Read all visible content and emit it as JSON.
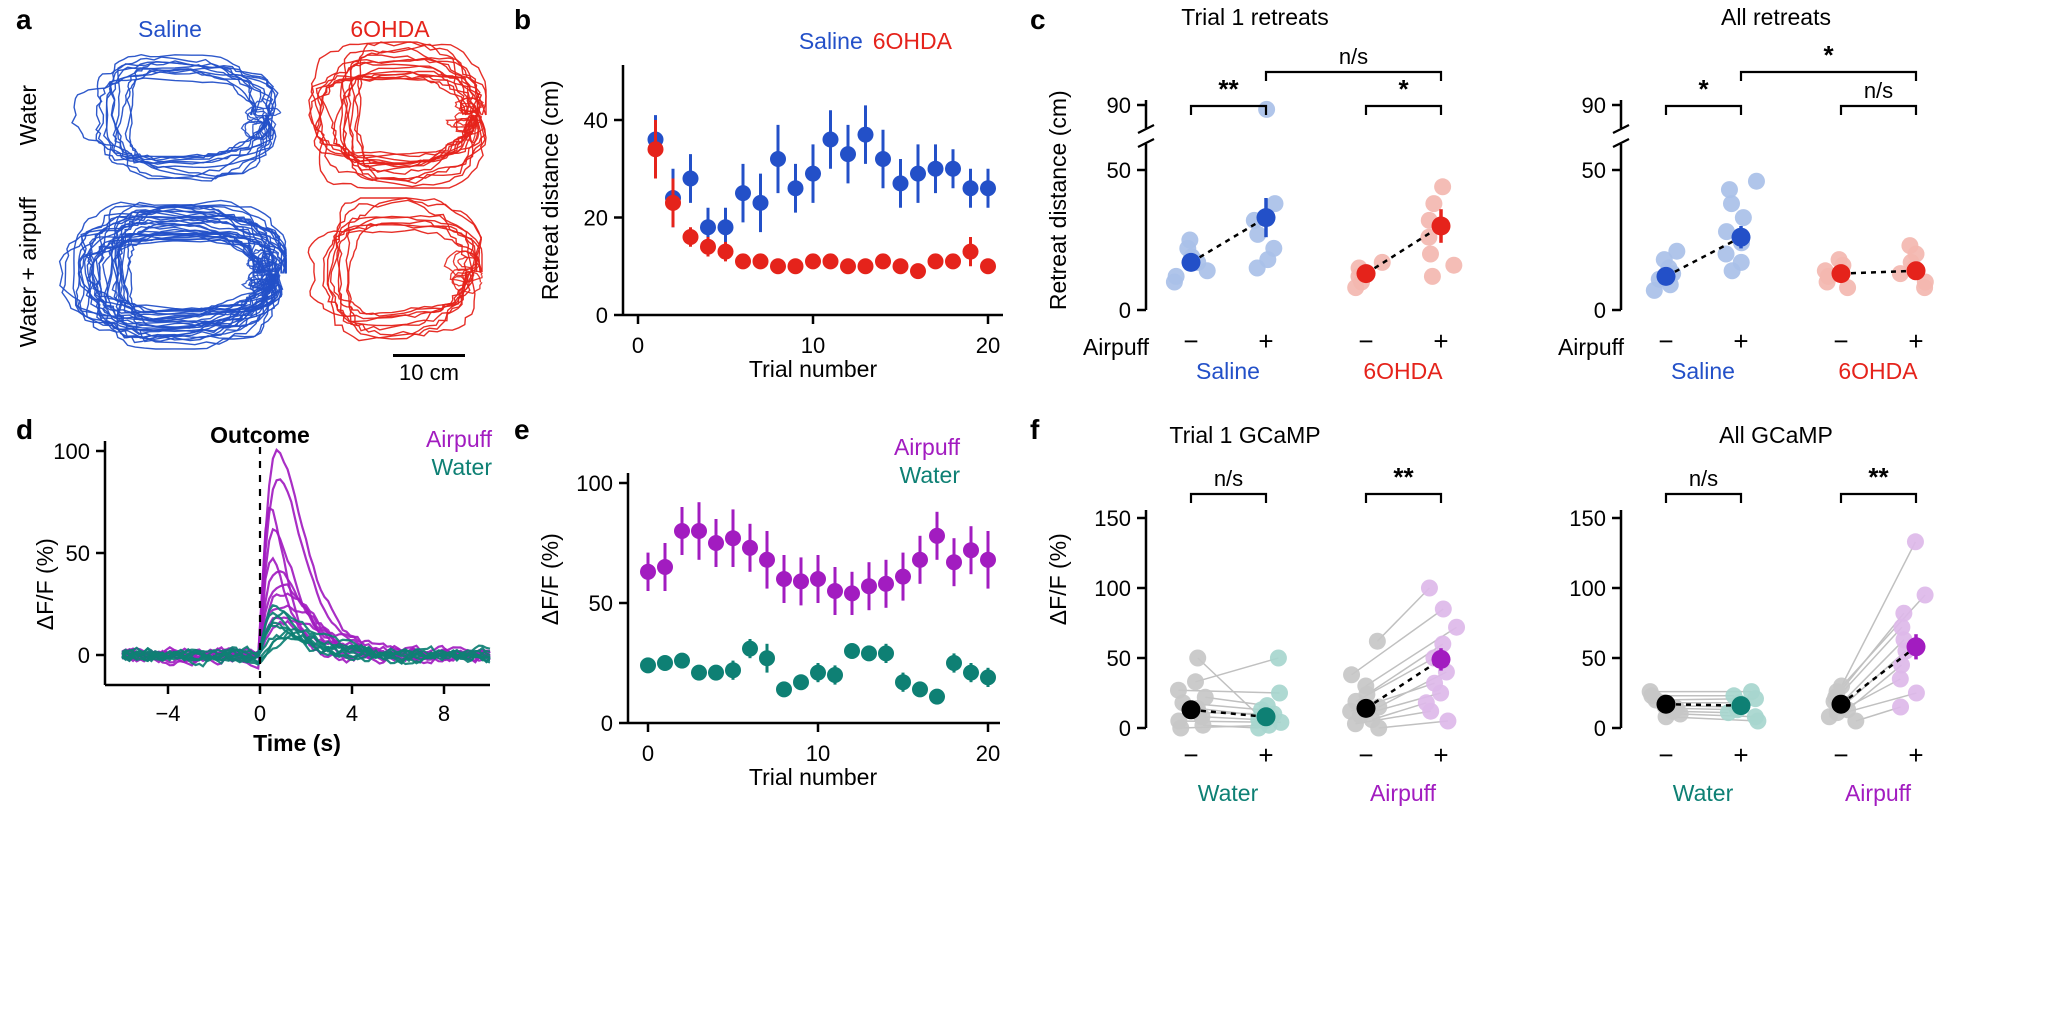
{
  "palette": {
    "blue": "#2350c8",
    "red": "#e5231b",
    "purple": "#a21cc0",
    "teal": "#0e8074",
    "light_blue": "#a9c0e8",
    "light_red": "#f3b7b0",
    "light_purple": "#ddb8e9",
    "light_teal": "#a7d6ce",
    "light_gray": "#c7c7c7",
    "gray_line": "#c0c0c0",
    "black": "#000000"
  },
  "chart_data": [
    {
      "panel": "a",
      "type": "trajectories",
      "col_labels": [
        "Saline",
        "6OHDA"
      ],
      "row_labels": [
        "Water",
        "Water + airpuff"
      ],
      "scalebar_label": "10 cm",
      "plots": [
        {
          "row": 0,
          "col": 0,
          "color": "blue",
          "loops": 11,
          "seed": 101
        },
        {
          "row": 0,
          "col": 1,
          "color": "red",
          "loops": 15,
          "seed": 202
        },
        {
          "row": 1,
          "col": 0,
          "color": "blue",
          "loops": 30,
          "seed": 303
        },
        {
          "row": 1,
          "col": 1,
          "color": "red",
          "loops": 9,
          "seed": 404
        }
      ]
    },
    {
      "panel": "b",
      "type": "errorbar-scatter",
      "xlabel": "Trial number",
      "ylabel": "Retreat distance (cm)",
      "xlim": [
        0,
        21
      ],
      "ylim": [
        0,
        50
      ],
      "xticks": [
        0,
        10,
        20
      ],
      "yticks": [
        0,
        20,
        40
      ],
      "legend": [
        {
          "label": "Saline",
          "color": "blue"
        },
        {
          "label": "6OHDA",
          "color": "red"
        }
      ],
      "x": [
        1,
        2,
        3,
        4,
        5,
        6,
        7,
        8,
        9,
        10,
        11,
        12,
        13,
        14,
        15,
        16,
        17,
        18,
        19,
        20
      ],
      "series": [
        {
          "name": "Saline",
          "color": "blue",
          "values": [
            36,
            24,
            28,
            18,
            18,
            25,
            23,
            32,
            26,
            29,
            36,
            33,
            37,
            32,
            27,
            29,
            30,
            30,
            26,
            26
          ],
          "errors": [
            5,
            6,
            5,
            4,
            4,
            6,
            6,
            7,
            5,
            6,
            6,
            6,
            6,
            6,
            5,
            6,
            5,
            4,
            4,
            4
          ]
        },
        {
          "name": "6OHDA",
          "color": "red",
          "values": [
            34,
            23,
            16,
            14,
            13,
            11,
            11,
            10,
            10,
            11,
            11,
            10,
            10,
            11,
            10,
            9,
            11,
            11,
            13,
            10
          ],
          "errors": [
            6,
            5,
            2,
            2,
            2,
            1.5,
            1.5,
            1.5,
            1.5,
            1.5,
            1.5,
            1.5,
            1.5,
            1.5,
            1.5,
            1.5,
            1.5,
            1.5,
            3,
            1.5
          ]
        }
      ]
    },
    {
      "panel": "c",
      "type": "paired-dots",
      "ylabel": "Retreat distance (cm)",
      "subplots": [
        {
          "title": "Trial 1 retreats",
          "yticks": [
            0,
            50,
            90
          ],
          "break_between": [
            50,
            90
          ],
          "axis_row_label": "Airpuff",
          "tick_signs": [
            "−",
            "+",
            "−",
            "+"
          ],
          "groups": [
            {
              "name": "Saline",
              "color": "blue",
              "sig": "**",
              "minus": {
                "points": [
                  10,
                  12,
                  14,
                  17,
                  19,
                  22,
                  25
                ],
                "mean": 17,
                "err": 3
              },
              "plus": {
                "points": [
                  15,
                  18,
                  22,
                  27,
                  32,
                  38,
                  85
                ],
                "mean": 33,
                "err": 7
              }
            },
            {
              "name": "6OHDA",
              "color": "red",
              "sig": "*",
              "minus": {
                "points": [
                  8,
                  10,
                  12,
                  13,
                  15,
                  17
                ],
                "mean": 13,
                "err": 2
              },
              "plus": {
                "points": [
                  12,
                  16,
                  20,
                  26,
                  32,
                  38,
                  44
                ],
                "mean": 30,
                "err": 6
              }
            }
          ],
          "top_bracket": {
            "label": "n/s"
          },
          "group_labels": [
            {
              "label": "Saline",
              "color": "blue"
            },
            {
              "label": "6OHDA",
              "color": "red"
            }
          ]
        },
        {
          "title": "All retreats",
          "yticks": [
            0,
            50,
            90
          ],
          "break_between": [
            50,
            90
          ],
          "axis_row_label": "Airpuff",
          "tick_signs": [
            "−",
            "+",
            "−",
            "+"
          ],
          "groups": [
            {
              "name": "Saline",
              "color": "blue",
              "sig": "*",
              "minus": {
                "points": [
                  7,
                  9,
                  11,
                  13,
                  15,
                  18,
                  21
                ],
                "mean": 12,
                "err": 2
              },
              "plus": {
                "points": [
                  14,
                  17,
                  20,
                  24,
                  28,
                  33,
                  38,
                  43,
                  46
                ],
                "mean": 26,
                "err": 4
              }
            },
            {
              "name": "6OHDA",
              "color": "red",
              "sig": "n/s",
              "minus": {
                "points": [
                  8,
                  10,
                  12,
                  14,
                  16,
                  18
                ],
                "mean": 13,
                "err": 1.5
              },
              "plus": {
                "points": [
                  8,
                  10,
                  13,
                  15,
                  17,
                  20,
                  23
                ],
                "mean": 14,
                "err": 2
              }
            }
          ],
          "top_bracket": {
            "label": "*"
          },
          "group_labels": [
            {
              "label": "Saline",
              "color": "blue"
            },
            {
              "label": "6OHDA",
              "color": "red"
            }
          ]
        }
      ]
    },
    {
      "panel": "d",
      "type": "traces",
      "xlabel": "Time (s)",
      "ylabel": "ΔF/F (%)",
      "xlim": [
        -6,
        10
      ],
      "ylim": [
        -15,
        105
      ],
      "xticks": [
        -4,
        0,
        4,
        8
      ],
      "yticks": [
        0,
        50,
        100
      ],
      "event_label": "Outcome",
      "event_x": 0,
      "legend": [
        {
          "label": "Airpuff",
          "color": "purple"
        },
        {
          "label": "Water",
          "color": "teal"
        }
      ],
      "series": [
        {
          "name": "Airpuff",
          "color": "purple",
          "seed": 11,
          "peaks": [
            100,
            86,
            72,
            60,
            50,
            42,
            35,
            30,
            25,
            21,
            17
          ]
        },
        {
          "name": "Water",
          "color": "teal",
          "seed": 12,
          "peaks": [
            26,
            22,
            19,
            16,
            14,
            12,
            11,
            9,
            8
          ]
        }
      ]
    },
    {
      "panel": "e",
      "type": "errorbar-scatter",
      "xlabel": "Trial number",
      "ylabel": "ΔF/F (%)",
      "xlim": [
        -0.5,
        20.5
      ],
      "ylim": [
        0,
        105
      ],
      "xticks": [
        0,
        10,
        20
      ],
      "yticks": [
        0,
        50,
        100
      ],
      "legend": [
        {
          "label": "Airpuff",
          "color": "purple"
        },
        {
          "label": "Water",
          "color": "teal"
        }
      ],
      "x": [
        0,
        1,
        2,
        3,
        4,
        5,
        6,
        7,
        8,
        9,
        10,
        11,
        12,
        13,
        14,
        15,
        16,
        17,
        18,
        19,
        20
      ],
      "series": [
        {
          "name": "Airpuff",
          "color": "purple",
          "values": [
            63,
            65,
            80,
            80,
            75,
            77,
            73,
            68,
            60,
            59,
            60,
            55,
            54,
            57,
            58,
            61,
            68,
            78,
            67,
            72,
            68
          ],
          "errors": [
            8,
            10,
            10,
            12,
            10,
            12,
            10,
            12,
            10,
            10,
            10,
            10,
            9,
            10,
            10,
            10,
            10,
            10,
            10,
            10,
            12
          ]
        },
        {
          "name": "Water",
          "color": "teal",
          "values": [
            24,
            25,
            26,
            21,
            21,
            22,
            31,
            27,
            14,
            17,
            21,
            20,
            30,
            29,
            29,
            17,
            14,
            11,
            25,
            21,
            19
          ],
          "errors": [
            3,
            3,
            3,
            3,
            3,
            4,
            4,
            6,
            3,
            3,
            4,
            4,
            3,
            3,
            4,
            4,
            3,
            3,
            4,
            4,
            4
          ]
        }
      ]
    },
    {
      "panel": "f",
      "type": "paired-dots",
      "ylabel": "ΔF/F (%)",
      "subplots": [
        {
          "title": "Trial 1 GCaMP",
          "yticks": [
            0,
            50,
            100,
            150
          ],
          "tick_signs": [
            "−",
            "+",
            "−",
            "+"
          ],
          "pair_lines": true,
          "groups": [
            {
              "name": "Water",
              "color": "teal",
              "sig": "n/s",
              "minus_point_color": "light_gray",
              "minus_mean_color": "black",
              "minus": {
                "points": [
                  0,
                  2,
                  5,
                  8,
                  11,
                  14,
                  18,
                  22,
                  27,
                  33,
                  50
                ],
                "mean": 13,
                "err": 4
              },
              "plus": {
                "points": [
                  2,
                  0,
                  4,
                  6,
                  10,
                  8,
                  13,
                  16,
                  25,
                  50,
                  5
                ],
                "mean": 8,
                "err": 3
              }
            },
            {
              "name": "Airpuff",
              "color": "purple",
              "sig": "**",
              "minus_point_color": "light_gray",
              "minus_mean_color": "black",
              "minus": {
                "points": [
                  0,
                  3,
                  6,
                  9,
                  12,
                  15,
                  19,
                  24,
                  30,
                  38,
                  62
                ],
                "mean": 14,
                "err": 4
              },
              "plus": {
                "points": [
                  5,
                  12,
                  18,
                  25,
                  32,
                  40,
                  50,
                  60,
                  72,
                  85,
                  100
                ],
                "mean": 49,
                "err": 8
              }
            }
          ],
          "group_labels": [
            {
              "label": "Water",
              "color": "teal"
            },
            {
              "label": "Airpuff",
              "color": "purple"
            }
          ]
        },
        {
          "title": "All GCaMP",
          "yticks": [
            0,
            50,
            100,
            150
          ],
          "tick_signs": [
            "−",
            "+",
            "−",
            "+"
          ],
          "pair_lines": true,
          "groups": [
            {
              "name": "Water",
              "color": "teal",
              "sig": "n/s",
              "minus_point_color": "light_gray",
              "minus_mean_color": "black",
              "minus": {
                "points": [
                  8,
                  10,
                  12,
                  14,
                  16,
                  18,
                  20,
                  23,
                  26
                ],
                "mean": 17,
                "err": 2
              },
              "plus": {
                "points": [
                  5,
                  8,
                  11,
                  13,
                  15,
                  18,
                  21,
                  23,
                  26
                ],
                "mean": 16,
                "err": 2
              }
            },
            {
              "name": "Airpuff",
              "color": "purple",
              "sig": "**",
              "minus_point_color": "light_gray",
              "minus_mean_color": "black",
              "minus": {
                "points": [
                  5,
                  8,
                  11,
                  13,
                  15,
                  17,
                  19,
                  22,
                  26,
                  30
                ],
                "mean": 17,
                "err": 2
              },
              "plus": {
                "points": [
                  15,
                  25,
                  35,
                  45,
                  55,
                  63,
                  72,
                  82,
                  95,
                  133
                ],
                "mean": 58,
                "err": 9
              }
            }
          ],
          "group_labels": [
            {
              "label": "Water",
              "color": "teal"
            },
            {
              "label": "Airpuff",
              "color": "purple"
            }
          ]
        }
      ]
    }
  ]
}
